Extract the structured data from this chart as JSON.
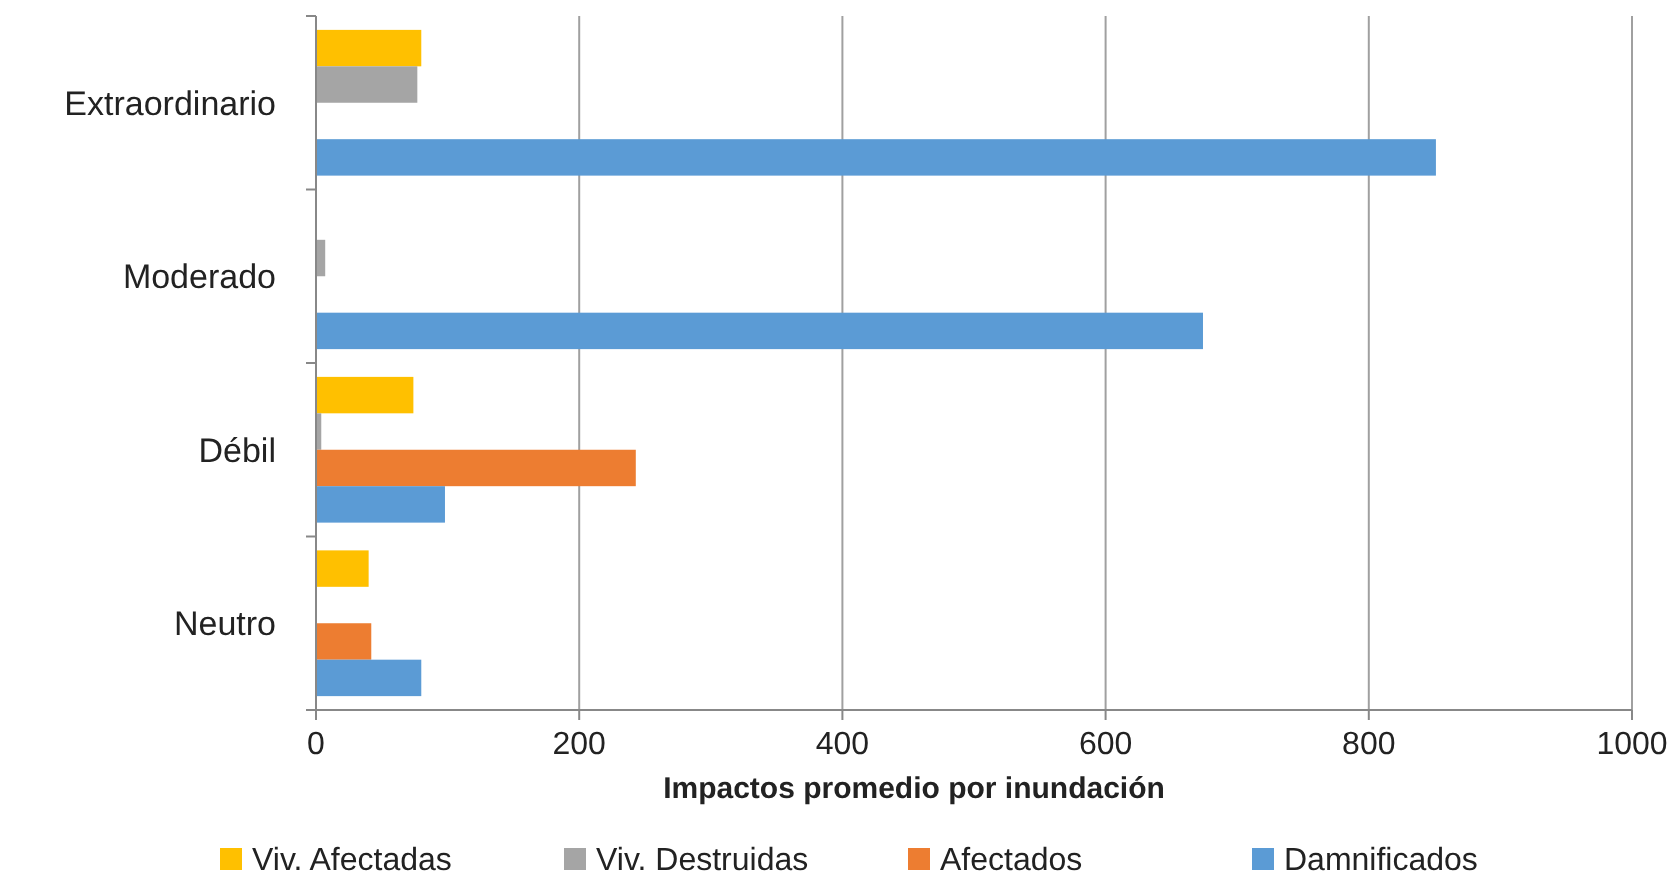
{
  "chart_data": {
    "type": "bar",
    "orientation": "horizontal",
    "xlabel": "Impactos promedio por inundación",
    "categories": [
      "Extraordinario",
      "Moderado",
      "Débil",
      "Neutro"
    ],
    "series": [
      {
        "name": "Viv. Afectadas",
        "color": "#ffc000",
        "values": [
          80,
          null,
          74,
          40
        ]
      },
      {
        "name": "Viv. Destruidas",
        "color": "#a5a5a5",
        "values": [
          77,
          7,
          4,
          null
        ]
      },
      {
        "name": "Afectados",
        "color": "#ed7d31",
        "values": [
          null,
          null,
          243,
          42
        ]
      },
      {
        "name": "Damnificados",
        "color": "#5b9bd5",
        "values": [
          851,
          674,
          98,
          80
        ]
      }
    ],
    "xlim": [
      0,
      1000
    ],
    "xticks": [
      0,
      200,
      400,
      600,
      800,
      1000
    ],
    "grid": "x",
    "legend": "bottom"
  }
}
